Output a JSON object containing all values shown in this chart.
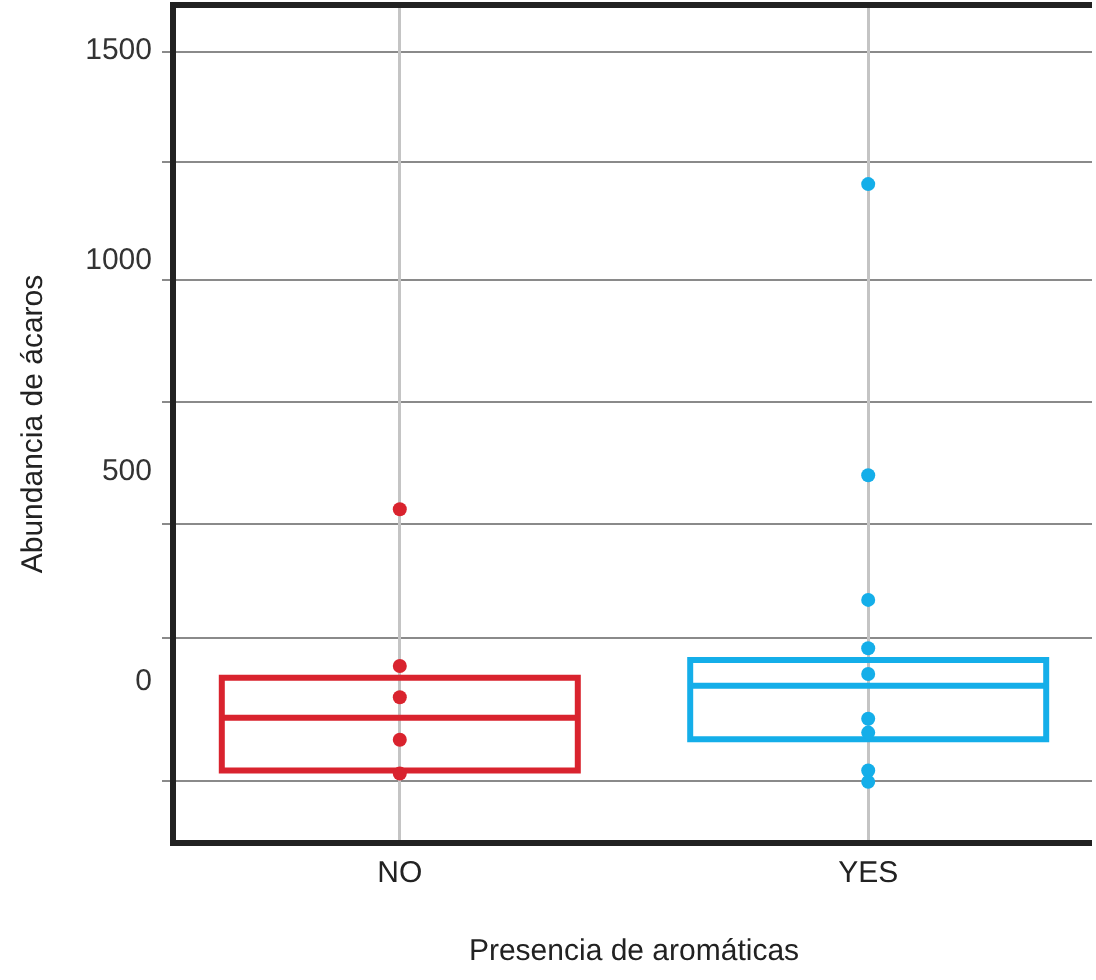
{
  "chart_data": {
    "type": "box",
    "xlabel": "Presencia de aromáticas",
    "ylabel": "Abundancia de ácaros",
    "categories": [
      "NO",
      "YES"
    ],
    "boxes": [
      {
        "low": -215,
        "q1": -215,
        "median": -90,
        "q3": 5,
        "high": 5
      },
      {
        "low": -141,
        "q1": -141,
        "median": -14,
        "q3": 47,
        "high": 47
      }
    ],
    "colors": [
      "#d9232e",
      "#14aee9"
    ],
    "series": [
      {
        "type": "scatter",
        "color": "#d9232e",
        "x": [
          "NO",
          "NO",
          "NO",
          "NO",
          "NO"
        ],
        "values": [
          405,
          33,
          -41,
          -142,
          -222
        ]
      },
      {
        "type": "scatter",
        "color": "#14aee9",
        "x": [
          "YES",
          "YES",
          "YES",
          "YES",
          "YES",
          "YES",
          "YES",
          "YES",
          "YES"
        ],
        "values": [
          1177,
          486,
          190,
          75,
          14,
          -92,
          -125,
          -215,
          -242
        ]
      }
    ],
    "ylim": [
      -380,
      1595
    ],
    "yticks": [
      {
        "value": -240,
        "label": null
      },
      0,
      {
        "value": 100,
        "label": null
      },
      {
        "value": 370,
        "label": null
      },
      500,
      {
        "value": 660,
        "label": null
      },
      {
        "value": 950,
        "label": null
      },
      1000,
      {
        "value": 1230,
        "label": null
      },
      {
        "value": 1490,
        "label": null
      },
      1500
    ],
    "grid": true,
    "marker": "circle"
  }
}
